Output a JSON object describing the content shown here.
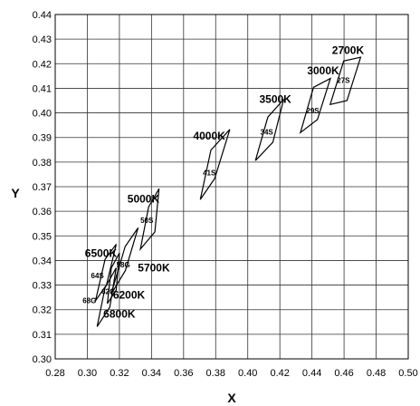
{
  "chart_data": {
    "type": "scatter",
    "title": "",
    "xlabel": "X",
    "ylabel": "Y",
    "xlim": [
      0.28,
      0.5
    ],
    "ylim": [
      0.3,
      0.44
    ],
    "x_ticks": [
      "0.28",
      "0.30",
      "0.32",
      "0.34",
      "0.36",
      "0.38",
      "0.40",
      "0.42",
      "0.44",
      "0.46",
      "0.48",
      "0.50"
    ],
    "y_ticks": [
      "0.44",
      "0.43",
      "0.42",
      "0.41",
      "0.40",
      "0.39",
      "0.38",
      "0.37",
      "0.36",
      "0.35",
      "0.34",
      "0.33",
      "0.32",
      "0.31",
      "0.30"
    ],
    "grid": true,
    "regions": [
      {
        "name": "2700K",
        "code": "27S",
        "corners": [
          [
            0.4514,
            0.4034
          ],
          [
            0.4618,
            0.405
          ],
          [
            0.4703,
            0.4226
          ],
          [
            0.4598,
            0.4211
          ]
        ]
      },
      {
        "name": "3000K",
        "code": "29S",
        "corners": [
          [
            0.4328,
            0.392
          ],
          [
            0.4434,
            0.3973
          ],
          [
            0.4515,
            0.414
          ],
          [
            0.441,
            0.4104
          ]
        ]
      },
      {
        "name": "3500K",
        "code": "34S",
        "corners": [
          [
            0.4048,
            0.3806
          ],
          [
            0.4156,
            0.388
          ],
          [
            0.4224,
            0.4055
          ],
          [
            0.4125,
            0.3983
          ]
        ]
      },
      {
        "name": "4000K",
        "code": "41S",
        "corners": [
          [
            0.3704,
            0.3648
          ],
          [
            0.3794,
            0.3733
          ],
          [
            0.3888,
            0.3933
          ],
          [
            0.377,
            0.3849
          ]
        ]
      },
      {
        "name": "5000K",
        "code": "50S",
        "corners": [
          [
            0.3331,
            0.3446
          ],
          [
            0.3421,
            0.3516
          ],
          [
            0.3447,
            0.3692
          ],
          [
            0.3382,
            0.3618
          ]
        ]
      },
      {
        "name": "5700K",
        "code": "58G",
        "corners": [
          [
            0.3148,
            0.3263
          ],
          [
            0.3237,
            0.3359
          ],
          [
            0.3317,
            0.3533
          ],
          [
            0.3236,
            0.3457
          ]
        ]
      },
      {
        "name": "6200K",
        "code": "62G",
        "corners": [
          [
            0.3125,
            0.3225
          ],
          [
            0.318,
            0.328
          ],
          [
            0.32,
            0.343
          ],
          [
            0.315,
            0.337
          ]
        ]
      },
      {
        "name": "6500K",
        "code": "64S",
        "corners": [
          [
            0.3051,
            0.3236
          ],
          [
            0.312,
            0.3301
          ],
          [
            0.318,
            0.3466
          ],
          [
            0.3111,
            0.3405
          ]
        ]
      },
      {
        "name": "6800K",
        "code": "68G",
        "corners": [
          [
            0.3061,
            0.3131
          ],
          [
            0.314,
            0.321
          ],
          [
            0.318,
            0.337
          ],
          [
            0.3111,
            0.329
          ]
        ]
      }
    ],
    "labels": [
      {
        "text": "2700K",
        "x": 0.4525,
        "y": 0.424
      },
      {
        "text": "3000K",
        "x": 0.437,
        "y": 0.4157
      },
      {
        "text": "3500K",
        "x": 0.4072,
        "y": 0.404
      },
      {
        "text": "4000K",
        "x": 0.366,
        "y": 0.3891
      },
      {
        "text": "5000K",
        "x": 0.325,
        "y": 0.3635
      },
      {
        "text": "5700K",
        "x": 0.3315,
        "y": 0.3356
      },
      {
        "text": "6200K",
        "x": 0.316,
        "y": 0.3245
      },
      {
        "text": "6500K",
        "x": 0.2985,
        "y": 0.3415
      },
      {
        "text": "6800K",
        "x": 0.31,
        "y": 0.3168
      }
    ],
    "cell_labels": [
      {
        "text": "27S",
        "x": 0.4596,
        "y": 0.4122
      },
      {
        "text": "29S",
        "x": 0.4405,
        "y": 0.3998
      },
      {
        "text": "34S",
        "x": 0.4118,
        "y": 0.3911
      },
      {
        "text": "41S",
        "x": 0.376,
        "y": 0.3746
      },
      {
        "text": "50S",
        "x": 0.3371,
        "y": 0.3552
      },
      {
        "text": "58G",
        "x": 0.3224,
        "y": 0.3373
      },
      {
        "text": "62G",
        "x": 0.3131,
        "y": 0.3264
      },
      {
        "text": "64S",
        "x": 0.3063,
        "y": 0.3327
      },
      {
        "text": "68G",
        "x": 0.3013,
        "y": 0.3226
      }
    ]
  }
}
